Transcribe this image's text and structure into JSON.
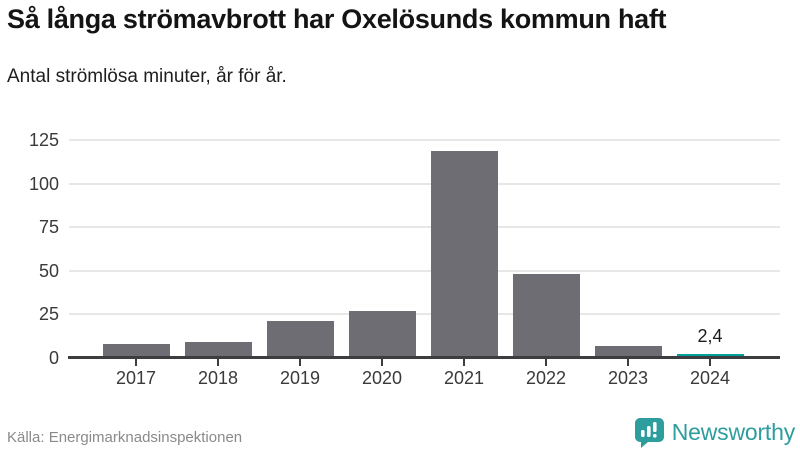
{
  "header": {
    "title": "Så långa strömavbrott har Oxelösunds kommun haft",
    "subtitle": "Antal strömlösa minuter, år för år."
  },
  "chart_data": {
    "type": "bar",
    "title": "Så långa strömavbrott har Oxelösunds kommun haft",
    "subtitle": "Antal strömlösa minuter, år för år.",
    "categories": [
      "2017",
      "2018",
      "2019",
      "2020",
      "2021",
      "2022",
      "2023",
      "2024"
    ],
    "values": [
      8,
      9,
      21,
      27,
      119,
      48,
      7,
      2.4
    ],
    "unit": "minutes",
    "xlabel": "",
    "ylabel": "Antal strömlösa minuter",
    "yticks": [
      0,
      25,
      50,
      75,
      100,
      125
    ],
    "ylim": [
      0,
      132
    ],
    "grid": true,
    "legend_position": "none",
    "highlight_index": 7,
    "annotations": [
      {
        "index": 7,
        "label": "2,4"
      }
    ]
  },
  "colors": {
    "bar": "#6d6d73",
    "bar_highlight": "#00a19a",
    "grid": "#e7e7e7",
    "axis": "#3d3d40",
    "brand": "#2e9d9d"
  },
  "footer": {
    "source": "Källa: Energimarknadsinspektionen",
    "brand": "Newsworthy"
  }
}
